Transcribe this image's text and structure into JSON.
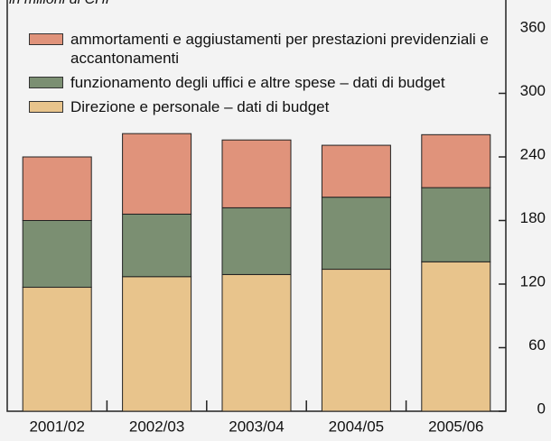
{
  "chart_data": {
    "type": "stacked_bar",
    "subtitle": "in milioni di CHF",
    "categories": [
      "2001/02",
      "2002/03",
      "2003/04",
      "2004/05",
      "2005/06"
    ],
    "series": [
      {
        "name": "Direzione e personale – dati di budget",
        "color": "#e8c48c",
        "values": [
          117,
          127,
          129,
          134,
          141
        ]
      },
      {
        "name": "funzionamento degli uffici e altre spese – dati di budget",
        "color": "#7b8f72",
        "values": [
          63,
          59,
          63,
          68,
          70
        ]
      },
      {
        "name": "ammortamenti e aggiustamenti per prestazioni previdenziali e accantonamenti",
        "color": "#e0937b",
        "values": [
          60,
          76,
          64,
          49,
          50
        ]
      }
    ],
    "ylim": [
      0,
      360
    ],
    "yticks": [
      0,
      60,
      120,
      180,
      240,
      300,
      360
    ],
    "y_axis_side": "right"
  }
}
